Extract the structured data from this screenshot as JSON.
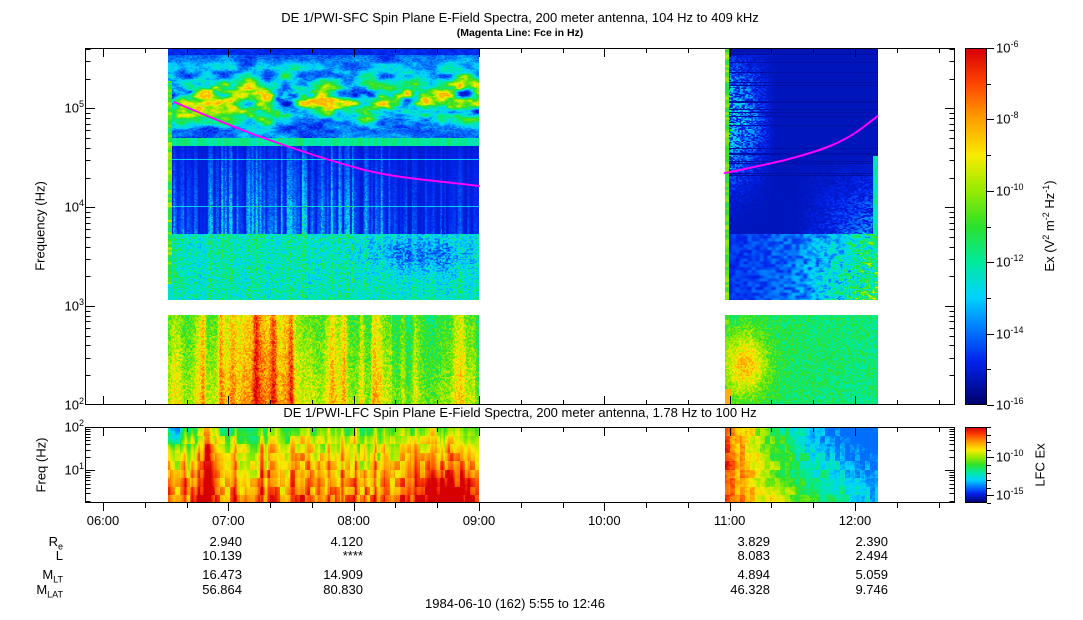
{
  "header": {
    "title": "DE 1/PWI-SFC  Spin Plane E-Field Spectra, 200 meter antenna, 104 Hz to 409 kHz",
    "subtitle": "(Magenta Line: Fce in Hz)"
  },
  "footer": {
    "date_range": "1984-06-10 (162) 5:55 to 12:46"
  },
  "chart_data": [
    {
      "id": "sfc",
      "type": "heatmap",
      "title": "DE 1/PWI-SFC  Spin Plane E-Field Spectra, 200 meter antenna, 104 Hz to 409 kHz",
      "subtitle": "(Magenta Line: Fce in Hz)",
      "ylabel": "Frequency (Hz)",
      "y_scale": "log",
      "y_range_hz": [
        100,
        409000
      ],
      "y_tick_exponents": [
        5,
        4,
        3,
        2
      ],
      "x_scale": "time",
      "x_range": [
        "05:52",
        "12:48"
      ],
      "x_hour_ticks": [
        "06:00",
        "07:00",
        "08:00",
        "09:00",
        "10:00",
        "11:00",
        "12:00"
      ],
      "x_minor_tick_minutes": 20,
      "data_segments": [
        {
          "start": "06:31",
          "end": "09:00"
        },
        {
          "start": "10:58",
          "end": "12:11"
        }
      ],
      "gap_band_hz": [
        820,
        1150
      ],
      "colorbar": {
        "label": "Ex (V2 m-2 Hz-1)",
        "label_parts": [
          {
            "t": "Ex (V"
          },
          {
            "sup": "2"
          },
          {
            "t": " m"
          },
          {
            "sup": "-2"
          },
          {
            "t": " Hz"
          },
          {
            "sup": "-1"
          },
          {
            "t": ")"
          }
        ],
        "scale": "log",
        "range": [
          1e-16,
          1e-06
        ],
        "tick_exponents": [
          -6,
          -7,
          -8,
          -9,
          -10,
          -11,
          -12,
          -13,
          -14,
          -15,
          -16
        ],
        "labeled_exponents": [
          -6,
          -8,
          -10,
          -12,
          -14,
          -16
        ]
      },
      "fce_line": {
        "label": "Fce (electron cyclotron frequency)",
        "color": "#ff00ff",
        "points_hour_hz": [
          [
            6.57,
            116000
          ],
          [
            7.0,
            68000
          ],
          [
            7.45,
            42000
          ],
          [
            7.88,
            28000
          ],
          [
            8.25,
            21000
          ],
          [
            8.8,
            17600
          ],
          [
            9.0,
            16400
          ],
          [
            10.96,
            22200
          ],
          [
            11.28,
            26700
          ],
          [
            11.68,
            36000
          ],
          [
            11.95,
            50000
          ],
          [
            12.18,
            83600
          ]
        ],
        "segment_break_after_hour": 9.0
      },
      "features": [
        {
          "name": "auroral-kilometric-radiation",
          "hz_range": [
            60000,
            300000
          ],
          "appearance": "patchy green-yellow emission band across segment 1, weaker cyan patches at start of segment 2"
        },
        {
          "name": "narrowband-line",
          "hz": 55000,
          "appearance": "thin cyan horizontal line across segment 1"
        },
        {
          "name": "vertical-electrostatic-bursts",
          "hz_range": [
            2000,
            30000
          ],
          "appearance": "cyan vertical striations over dark blue, densest 07:00-08:20"
        },
        {
          "name": "low-frequency-broadband",
          "hz_range": [
            100,
            800
          ],
          "appearance": "green with yellow-orange-red vertical bursts, strongest 06:50-08:00; segment 2 yellow blob near 11:00"
        },
        {
          "name": "instrument-band-gap",
          "hz_range": [
            820,
            1150
          ],
          "appearance": "white horizontal band"
        },
        {
          "name": "data-gap",
          "hours": [
            "09:00",
            "10:58"
          ],
          "appearance": "white region, no data"
        }
      ]
    },
    {
      "id": "lfc",
      "type": "heatmap",
      "title": "DE 1/PWI-LFC  Spin Plane E-Field Spectra, 200 meter antenna, 1.78 Hz to 100 Hz",
      "ylabel": "Freq (Hz)",
      "y_scale": "log",
      "y_range_hz": [
        1.78,
        100
      ],
      "y_tick_exponents": [
        2,
        1
      ],
      "x_hour_ticks": [
        "06:00",
        "07:00",
        "08:00",
        "09:00",
        "10:00",
        "11:00",
        "12:00"
      ],
      "data_segments": [
        {
          "start": "06:31",
          "end": "09:00"
        },
        {
          "start": "10:58",
          "end": "12:11"
        }
      ],
      "colorbar": {
        "label": "LFC Ex",
        "scale": "log",
        "range": [
          1e-16,
          1e-06
        ],
        "tick_exponents": [
          -6,
          -7,
          -8,
          -9,
          -10,
          -11,
          -12,
          -13,
          -14,
          -15,
          -16
        ],
        "labeled_exponents": [
          -10,
          -15
        ]
      },
      "features": [
        {
          "name": "intense-elf-noise",
          "appearance": "red-orange at lowest frequencies throughout segment 1, strongest 07:00-08:50; green near top rows at left edge"
        },
        {
          "name": "post-gap-decay",
          "appearance": "segment 2 begins red-orange at 11:00 fading to green-cyan by 12:10"
        },
        {
          "name": "data-gap",
          "hours": [
            "09:00",
            "10:58"
          ],
          "appearance": "white region, no data"
        }
      ]
    }
  ],
  "ephemeris": {
    "row_labels": [
      {
        "base": "R",
        "sub": "e"
      },
      {
        "base": "L",
        "sub": ""
      },
      {
        "base": "M",
        "sub": "LT"
      },
      {
        "base": "M",
        "sub": "LAT"
      }
    ],
    "columns": [
      {
        "time": "07:00",
        "values": [
          "2.940",
          "10.139",
          "16.473",
          "56.864"
        ]
      },
      {
        "time": "08:00",
        "values": [
          "4.120",
          "****",
          "14.909",
          "80.830"
        ]
      },
      {
        "time": "11:00",
        "values": [
          "3.829",
          "8.083",
          "4.894",
          "46.328"
        ]
      },
      {
        "time": "12:00",
        "values": [
          "2.390",
          "2.494",
          "5.059",
          "9.746"
        ]
      }
    ]
  }
}
